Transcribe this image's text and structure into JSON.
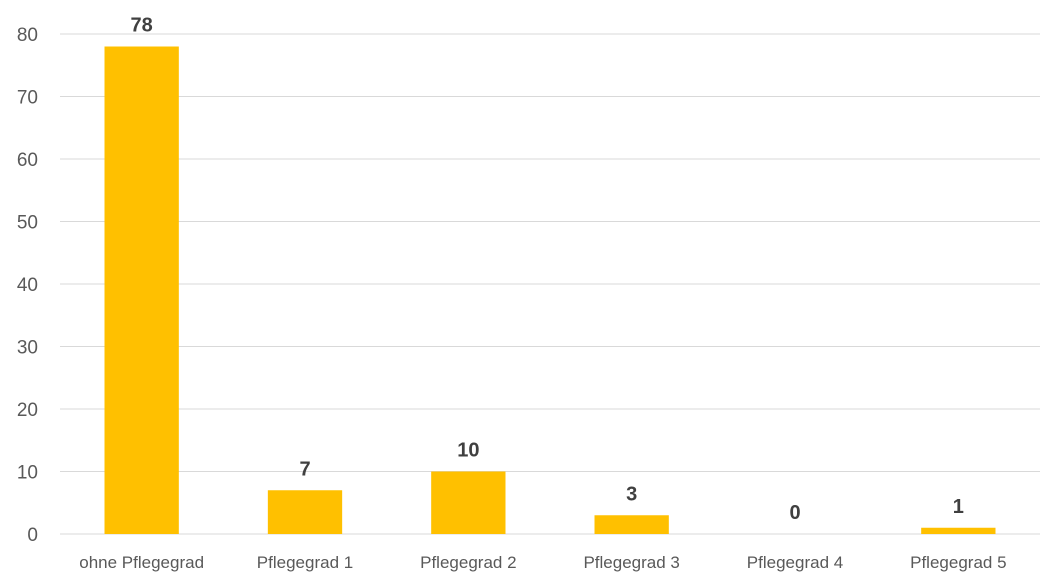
{
  "chart_data": {
    "type": "bar",
    "categories": [
      "ohne Pflegegrad",
      "Pflegegrad 1",
      "Pflegegrad 2",
      "Pflegegrad 3",
      "Pflegegrad 4",
      "Pflegegrad 5"
    ],
    "values": [
      78,
      7,
      10,
      3,
      0,
      1
    ],
    "data_labels": [
      "78",
      "7",
      "10",
      "3",
      "0",
      "1"
    ],
    "y_ticks": [
      0,
      10,
      20,
      30,
      40,
      50,
      60,
      70,
      80
    ],
    "y_tick_labels": [
      "0",
      "10",
      "20",
      "30",
      "40",
      "50",
      "60",
      "70",
      "80"
    ],
    "ylim": [
      0,
      80
    ],
    "grid": true,
    "legend": "none",
    "title": "",
    "xlabel": "",
    "ylabel": "",
    "colors": {
      "bar": "#FFC000",
      "grid": "#D9D9D9",
      "axis_text": "#595959",
      "data_label": "#404040"
    }
  }
}
